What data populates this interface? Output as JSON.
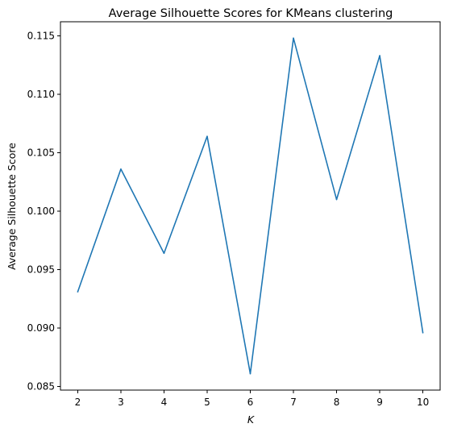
{
  "chart_data": {
    "type": "line",
    "title": "Average Silhouette Scores for KMeans clustering",
    "xlabel": "K",
    "ylabel": "Average Silhouette Score",
    "x": [
      2,
      3,
      4,
      5,
      6,
      7,
      8,
      9,
      10
    ],
    "series": [
      {
        "values": [
          0.0931,
          0.1036,
          0.0964,
          0.1064,
          0.0861,
          0.1148,
          0.101,
          0.1133,
          0.0896
        ],
        "color": "#1f77b4"
      }
    ],
    "xlim": [
      1.6,
      10.4
    ],
    "ylim": [
      0.0847,
      0.1162
    ],
    "x_ticks": [
      2,
      3,
      4,
      5,
      6,
      7,
      8,
      9,
      10
    ],
    "y_ticks": [
      "0.085",
      "0.090",
      "0.095",
      "0.100",
      "0.105",
      "0.110",
      "0.115"
    ],
    "grid": false,
    "legend": null
  }
}
